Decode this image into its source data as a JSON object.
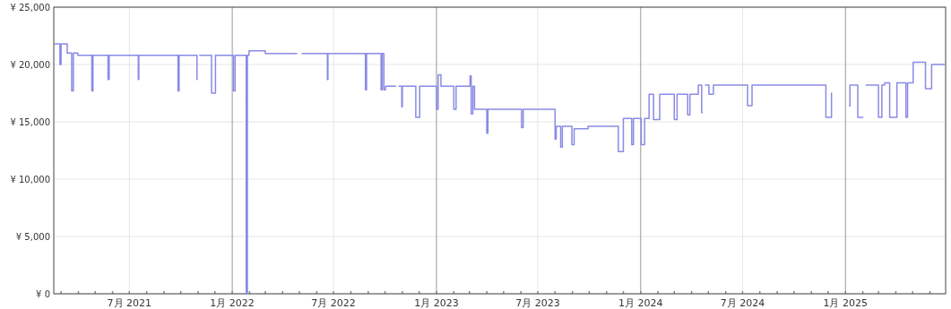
{
  "chart_data": {
    "type": "step",
    "color": "#8a8ae6",
    "grid": true,
    "x": [
      "2021-02-16",
      "2021-02-27",
      "2021-03-01",
      "2021-03-12",
      "2021-03-20",
      "2021-03-23",
      "2021-03-31",
      "2021-04-25",
      "2021-04-27",
      "2021-05-24",
      "2021-05-26",
      "2021-07-17",
      "2021-07-18",
      "2021-09-26",
      "2021-09-28",
      "2021-10-30",
      "2021-10-31",
      "2021-11-03",
      "2021-11-25",
      "2021-12-02",
      "2022-01-03",
      "2022-01-06",
      "2022-01-26",
      "2022-01-28",
      "2022-01-31",
      "2022-03-01",
      "2022-04-27",
      "2022-05-05",
      "2022-06-20",
      "2022-06-21",
      "2022-08-27",
      "2022-08-29",
      "2022-09-24",
      "2022-09-26",
      "2022-09-29",
      "2022-10-02",
      "2022-10-21",
      "2022-10-25",
      "2022-10-31",
      "2022-11-01",
      "2022-11-25",
      "2022-12-02",
      "2023-01-01",
      "2023-01-04",
      "2023-01-09",
      "2023-02-01",
      "2023-02-05",
      "2023-03-02",
      "2023-03-04",
      "2023-03-07",
      "2023-03-10",
      "2023-04-01",
      "2023-04-03",
      "2023-06-02",
      "2023-06-05",
      "2023-08-01",
      "2023-08-03",
      "2023-08-11",
      "2023-08-14",
      "2023-08-31",
      "2023-09-04",
      "2023-09-29",
      "2023-11-22",
      "2023-12-01",
      "2023-12-16",
      "2023-12-19",
      "2024-01-02",
      "2024-01-08",
      "2024-01-16",
      "2024-01-24",
      "2024-02-04",
      "2024-03-01",
      "2024-03-06",
      "2024-03-25",
      "2024-03-29",
      "2024-04-13",
      "2024-04-19",
      "2024-04-21",
      "2024-04-25",
      "2024-05-02",
      "2024-05-10",
      "2024-07-10",
      "2024-07-18",
      "2024-11-27",
      "2024-12-07",
      "2024-12-08",
      "2025-01-07",
      "2025-01-09",
      "2025-01-23",
      "2025-02-02",
      "2025-02-06",
      "2025-03-01",
      "2025-03-07",
      "2025-03-12",
      "2025-03-21",
      "2025-04-03",
      "2025-04-19",
      "2025-04-22",
      "2025-05-02",
      "2025-05-24",
      "2025-06-04",
      "2025-06-28"
    ],
    "values": [
      21800,
      20000,
      21800,
      21000,
      17700,
      21000,
      20800,
      17700,
      20800,
      18700,
      20800,
      18700,
      20800,
      17700,
      20800,
      18700,
      null,
      20800,
      17500,
      20800,
      17700,
      20800,
      0,
      20800,
      21200,
      20950,
      null,
      20950,
      18700,
      20950,
      17800,
      20950,
      17800,
      20950,
      17800,
      18100,
      null,
      18100,
      16300,
      18100,
      15400,
      18100,
      16100,
      19100,
      18100,
      16100,
      18100,
      19000,
      15700,
      18100,
      16100,
      14000,
      16100,
      14500,
      16100,
      13500,
      14600,
      12800,
      14600,
      13000,
      14400,
      14600,
      12400,
      15300,
      13000,
      15300,
      13000,
      15300,
      17400,
      15200,
      17400,
      15200,
      17400,
      15600,
      17400,
      18200,
      15800,
      null,
      18200,
      17400,
      18200,
      16400,
      18200,
      15400,
      17500,
      null,
      16400,
      18200,
      15400,
      null,
      18200,
      15400,
      18200,
      18400,
      15400,
      18400,
      15400,
      18400,
      20200,
      17900,
      20000,
      20000
    ],
    "xlim": [
      "2021-02-16",
      "2025-06-29"
    ],
    "ylim": [
      0,
      25000
    ],
    "yticks": [
      {
        "value": 0,
        "label": "¥ 0"
      },
      {
        "value": 5000,
        "label": "¥ 5,000"
      },
      {
        "value": 10000,
        "label": "¥ 10,000"
      },
      {
        "value": 15000,
        "label": "¥ 15,000"
      },
      {
        "value": 20000,
        "label": "¥ 20,000"
      },
      {
        "value": 25000,
        "label": "¥ 25,000"
      }
    ],
    "xticks": [
      {
        "value": "2021-03-01",
        "label": null
      },
      {
        "value": "2021-04-01",
        "label": null
      },
      {
        "value": "2021-05-01",
        "label": null
      },
      {
        "value": "2021-06-01",
        "label": null
      },
      {
        "value": "2021-07-01",
        "label": "7月 2021"
      },
      {
        "value": "2021-08-01",
        "label": null
      },
      {
        "value": "2021-09-01",
        "label": null
      },
      {
        "value": "2021-10-01",
        "label": null
      },
      {
        "value": "2021-11-01",
        "label": null
      },
      {
        "value": "2021-12-01",
        "label": null
      },
      {
        "value": "2022-01-01",
        "label": "1月 2022"
      },
      {
        "value": "2022-02-01",
        "label": null
      },
      {
        "value": "2022-03-01",
        "label": null
      },
      {
        "value": "2022-04-01",
        "label": null
      },
      {
        "value": "2022-05-01",
        "label": null
      },
      {
        "value": "2022-06-01",
        "label": null
      },
      {
        "value": "2022-07-01",
        "label": "7月 2022"
      },
      {
        "value": "2022-08-01",
        "label": null
      },
      {
        "value": "2022-09-01",
        "label": null
      },
      {
        "value": "2022-10-01",
        "label": null
      },
      {
        "value": "2022-11-01",
        "label": null
      },
      {
        "value": "2022-12-01",
        "label": null
      },
      {
        "value": "2023-01-01",
        "label": "1月 2023"
      },
      {
        "value": "2023-02-01",
        "label": null
      },
      {
        "value": "2023-03-01",
        "label": null
      },
      {
        "value": "2023-04-01",
        "label": null
      },
      {
        "value": "2023-05-01",
        "label": null
      },
      {
        "value": "2023-06-01",
        "label": null
      },
      {
        "value": "2023-07-01",
        "label": "7月 2023"
      },
      {
        "value": "2023-08-01",
        "label": null
      },
      {
        "value": "2023-09-01",
        "label": null
      },
      {
        "value": "2023-10-01",
        "label": null
      },
      {
        "value": "2023-11-01",
        "label": null
      },
      {
        "value": "2023-12-01",
        "label": null
      },
      {
        "value": "2024-01-01",
        "label": "1月 2024"
      },
      {
        "value": "2024-02-01",
        "label": null
      },
      {
        "value": "2024-03-01",
        "label": null
      },
      {
        "value": "2024-04-01",
        "label": null
      },
      {
        "value": "2024-05-01",
        "label": null
      },
      {
        "value": "2024-06-01",
        "label": null
      },
      {
        "value": "2024-07-01",
        "label": "7月 2024"
      },
      {
        "value": "2024-08-01",
        "label": null
      },
      {
        "value": "2024-09-01",
        "label": null
      },
      {
        "value": "2024-10-01",
        "label": null
      },
      {
        "value": "2024-11-01",
        "label": null
      },
      {
        "value": "2024-12-01",
        "label": null
      },
      {
        "value": "2025-01-01",
        "label": "1月 2025"
      },
      {
        "value": "2025-02-01",
        "label": null
      },
      {
        "value": "2025-03-01",
        "label": null
      },
      {
        "value": "2025-04-01",
        "label": null
      },
      {
        "value": "2025-05-01",
        "label": null
      },
      {
        "value": "2025-06-01",
        "label": null
      }
    ]
  }
}
